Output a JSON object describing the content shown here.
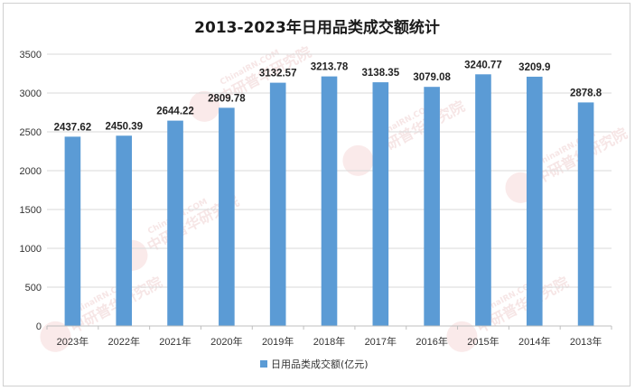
{
  "chart_data": {
    "type": "bar",
    "title": "2013-2023年日用品类成交额统计",
    "categories": [
      "2023年",
      "2022年",
      "2021年",
      "2020年",
      "2019年",
      "2018年",
      "2017年",
      "2016年",
      "2015年",
      "2014年",
      "2013年"
    ],
    "series": [
      {
        "name": "日用品类成交额(亿元)",
        "values": [
          2437.62,
          2450.39,
          2644.22,
          2809.78,
          3132.57,
          3213.78,
          3138.35,
          3079.08,
          3240.77,
          3209.9,
          2878.8
        ],
        "labels": [
          "2437.62",
          "2450.39",
          "2644.22",
          "2809.78",
          "3132.57",
          "3213.78",
          "3138.35",
          "3079.08",
          "3240.77",
          "3209.9",
          "2878.8"
        ],
        "color": "#5b9bd5"
      }
    ],
    "ylim": [
      0,
      3500
    ],
    "yticks": [
      0,
      500,
      1000,
      1500,
      2000,
      2500,
      3000,
      3500
    ],
    "grid": true,
    "legend": "bottom"
  },
  "watermark": {
    "text": "中研普华研究院",
    "url": "ChinaIRN.COM",
    "color": "#e8b8b8"
  }
}
